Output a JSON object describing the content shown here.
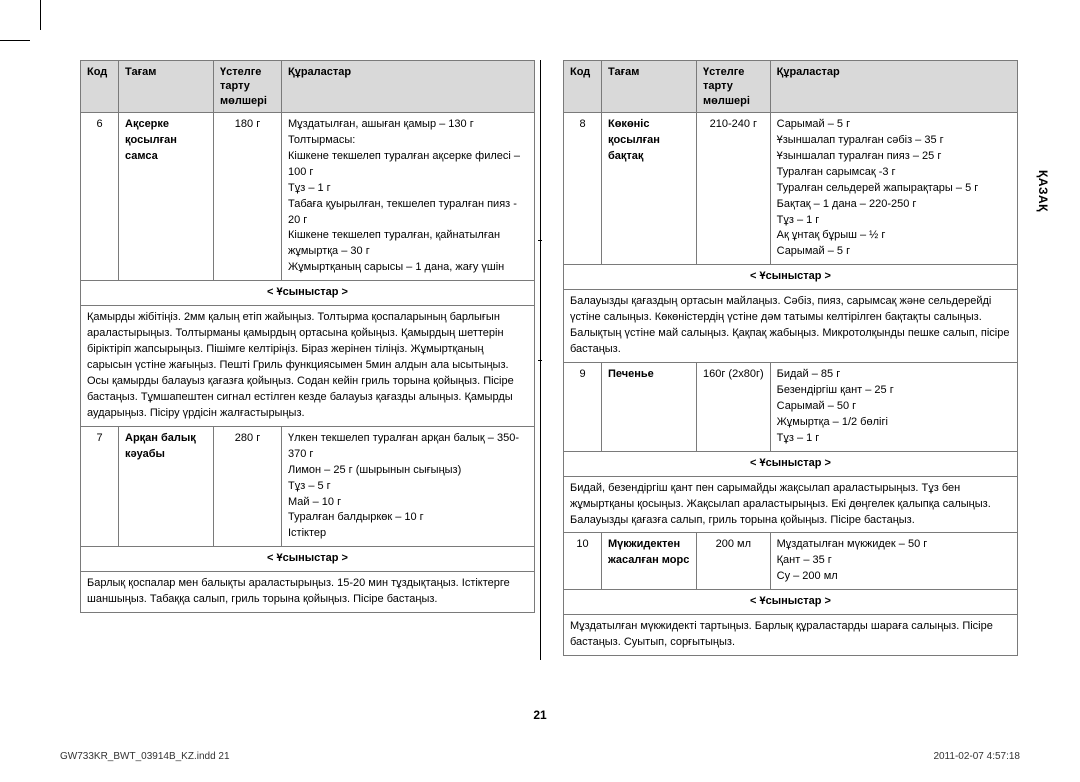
{
  "side_label": "ҚАЗАҚ",
  "page_number": "21",
  "footer_left": "GW733KR_BWT_03914B_KZ.indd   21",
  "footer_right": "2011-02-07   4:57:18",
  "headers": {
    "code": "Код",
    "food": "Тағам",
    "portion": "Үстелге тарту мөлшері",
    "ingredients": "Құраластар"
  },
  "tips_label": "< Ұсыныстар >",
  "left": [
    {
      "code": "6",
      "name": "Ақсерке қосылған самса",
      "portion": "180 г",
      "ingredients": "Мұздатылған, ашыған қамыр – 130 г\nТолтырмасы:\nКішкене текшелеп туралған ақсерке филесі – 100 г\nТұз – 1 г\nТабаға қуырылған, текшелеп туралған пияз - 20 г\nКішкене текшелеп туралған, қайнатылған жұмыртқа – 30 г\nЖұмыртқаның сарысы – 1 дана, жағу үшін",
      "tips": "Қамырды жібітіңіз. 2мм қалың етіп жайыңыз. Толтырма қоспаларының барлығын араластырыңыз.  Толтырманы қамырдың ортасына қойыңыз.  Қамырдың шеттерін біріктіріп жапсырыңыз.  Пішімге келтіріңіз.  Біраз жерінен тіліңіз.  Жұмыртқаның сарысын үстіне жағыңыз. Пешті Гриль функциясымен 5мин  алдын ала ысытыңыз. Осы қамырды балауыз қағазға қойыңыз.  Содан кейін гриль торына қойыңыз.  Пісіре бастаңыз.  Тұмшапештен сигнал естілген кезде балауыз қағазды алыңыз. Қамырды аударыңыз. Пісіру үрдісін жалғастырыңыз."
    },
    {
      "code": "7",
      "name": "Арқан балық кәуабы",
      "portion": "280 г",
      "ingredients": "Үлкен текшелеп туралған арқан балық – 350-370 г\nЛимон – 25 г (шырынын сығыңыз)\nТұз – 5 г\nМай – 10 г\nТуралған балдыркөк – 10 г\nІстіктер",
      "tips": "Барлық қоспалар мен балықты араластырыңыз.  15-20 мин тұздықтаңыз. Істіктерге шаншыңыз. Табаққа салып, гриль торына қойыңыз.  Пісіре бастаңыз."
    }
  ],
  "right": [
    {
      "code": "8",
      "name": "Көкөніс қосылған бақтақ",
      "portion": "210-240 г",
      "ingredients": "Сарымай – 5 г\nҰзыншалап туралған сәбіз – 35 г\nҰзыншалап туралған пияз – 25 г\nТуралған сарымсақ -3 г\nТуралған сельдерей жапырақтары – 5 г\nБақтақ – 1 дана – 220-250 г\nТұз – 1 г\nАқ ұнтақ бұрыш – ½ г\nСарымай – 5 г",
      "tips": "Балауызды қағаздың ортасын майлаңыз.  Сәбіз, пияз, сарымсақ және сельдерейді үстіне салыңыз.  Көкөністердің үстіне дәм татымы келтірілген бақтақты салыңыз.  Балықтың үстіне май салыңыз.  Қақпақ жабыңыз.  Микротолқынды пешке салып, пісіре бастаңыз."
    },
    {
      "code": "9",
      "name": "Печенье",
      "portion": "160г (2x80г)",
      "ingredients": "Бидай – 85 г\nБезендіргіш қант – 25 г\nСарымай – 50 г\nЖұмыртқа – 1/2 бөлігі\nТұз – 1 г",
      "tips": "Бидай, безендіргіш қант пен сарымайды жақсылап араластырыңыз.  Тұз бен жұмыртқаны қосыңыз.  Жақсылап араластырыңыз.  Екі дөңгелек қалыпқа салыңыз.  Балауызды қағазға салып, гриль торына қойыңыз.  Пісіре бастаңыз."
    },
    {
      "code": "10",
      "name": "Мүкжидектен жасалған морс",
      "portion": "200 мл",
      "ingredients": "Мұздатылған мүкжидек – 50 г\nҚант  – 35 г\nСу – 200 мл",
      "tips": "Мұздатылған мүкжидекті тартыңыз.  Барлық құраластарды шараға салыңыз.  Пісіре бастаңыз.  Суытып, сорғытыңыз."
    }
  ]
}
